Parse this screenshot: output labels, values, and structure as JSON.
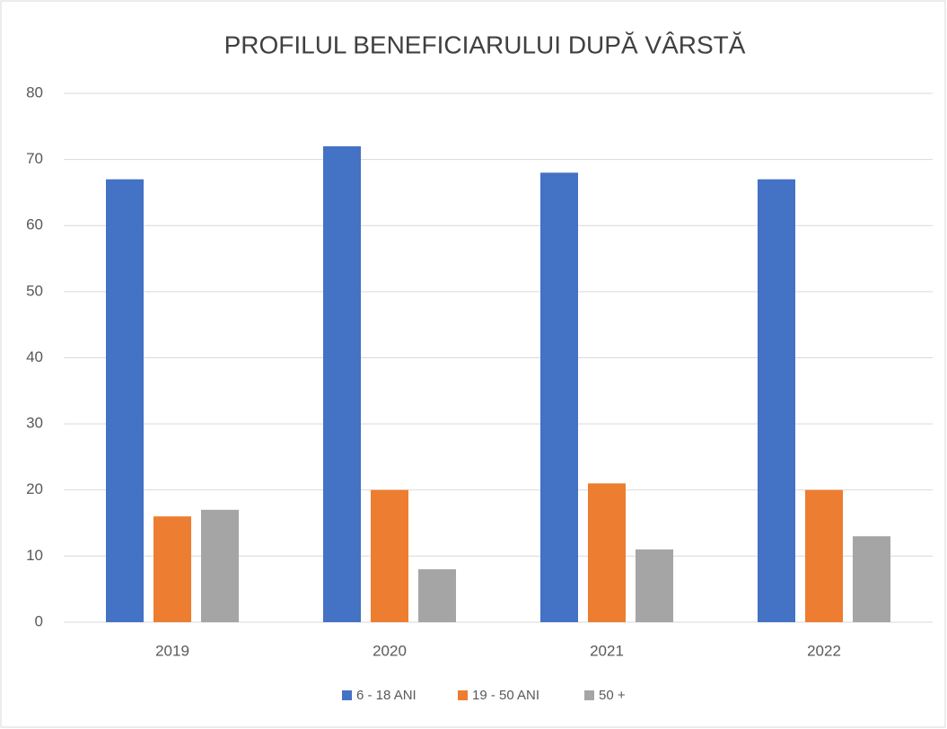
{
  "chart_data": {
    "type": "bar",
    "title": "PROFILUL BENEFICIARULUI DUPĂ VÂRSTĂ",
    "categories": [
      "2019",
      "2020",
      "2021",
      "2022"
    ],
    "series": [
      {
        "name": "6 - 18 ANI",
        "color": "#4472c4",
        "values": [
          67,
          72,
          68,
          67
        ]
      },
      {
        "name": "19 - 50 ANI",
        "color": "#ed7d31",
        "values": [
          16,
          20,
          21,
          20
        ]
      },
      {
        "name": "50 +",
        "color": "#a5a5a5",
        "values": [
          17,
          8,
          11,
          13
        ]
      }
    ],
    "ylim": [
      0,
      80
    ],
    "yticks": [
      0,
      10,
      20,
      30,
      40,
      50,
      60,
      70,
      80
    ],
    "grid": true,
    "legend": "bottom"
  }
}
